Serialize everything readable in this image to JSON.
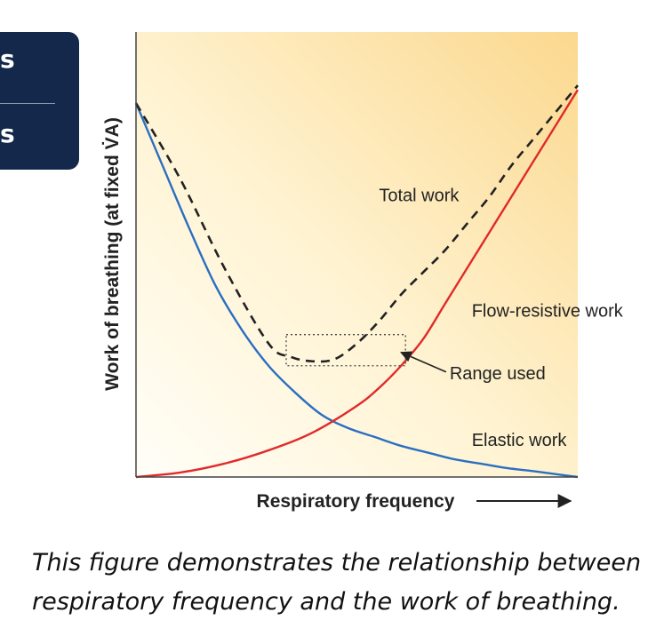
{
  "sidebar": {
    "items": [
      {
        "label": "s"
      },
      {
        "label": "s"
      }
    ]
  },
  "colors": {
    "sidebar_bg": "#13284a",
    "plot_bg_light": "#fffdf4",
    "plot_bg_dark": "#fbd88e",
    "elastic": "#2a6fc1",
    "flow_resistive": "#e02a2a",
    "total": "#222222"
  },
  "caption": "This figure demonstrates the relationship between respiratory frequency and the work of breathing.",
  "chart_data": {
    "type": "line",
    "xlabel": "Respiratory frequency",
    "ylabel": "Work of breathing (at fixed V̇A)",
    "xlim": [
      0,
      1
    ],
    "ylim": [
      0,
      1
    ],
    "grid": false,
    "series": [
      {
        "name": "Elastic work",
        "color": "#2a6fc1",
        "x": [
          0.0,
          0.06,
          0.12,
          0.18,
          0.24,
          0.3,
          0.36,
          0.42,
          0.48,
          0.54,
          0.6,
          0.66,
          0.72,
          0.78,
          0.84,
          0.9,
          0.96,
          1.0
        ],
        "y": [
          0.84,
          0.7,
          0.56,
          0.43,
          0.33,
          0.25,
          0.19,
          0.14,
          0.11,
          0.09,
          0.07,
          0.055,
          0.04,
          0.03,
          0.02,
          0.013,
          0.005,
          0.0
        ]
      },
      {
        "name": "Flow-resistive work",
        "color": "#e02a2a",
        "x": [
          0.0,
          0.1,
          0.2,
          0.3,
          0.4,
          0.5,
          0.55,
          0.6,
          0.65,
          0.7,
          0.75,
          0.8,
          0.85,
          0.9,
          0.95,
          1.0
        ],
        "y": [
          0.0,
          0.01,
          0.03,
          0.06,
          0.1,
          0.16,
          0.2,
          0.25,
          0.31,
          0.39,
          0.47,
          0.55,
          0.63,
          0.71,
          0.79,
          0.87
        ]
      },
      {
        "name": "Total work",
        "color": "#222222",
        "dashed": true,
        "x": [
          0.0,
          0.1,
          0.2,
          0.3,
          0.35,
          0.4,
          0.45,
          0.5,
          0.55,
          0.6,
          0.65,
          0.7,
          0.75,
          0.8,
          0.85,
          0.9,
          0.95,
          1.0
        ],
        "y": [
          0.84,
          0.67,
          0.47,
          0.3,
          0.27,
          0.26,
          0.265,
          0.3,
          0.35,
          0.41,
          0.46,
          0.51,
          0.57,
          0.63,
          0.7,
          0.76,
          0.82,
          0.88
        ]
      }
    ],
    "annotations": [
      {
        "text": "Total work",
        "x": 0.55,
        "y": 0.62,
        "anchor": "start"
      },
      {
        "text": "Flow-resistive work",
        "x": 0.76,
        "y": 0.36,
        "anchor": "start"
      },
      {
        "text": "Range used",
        "x": 0.71,
        "y": 0.22,
        "anchor": "start",
        "arrow_to": [
          0.6,
          0.28
        ]
      },
      {
        "text": "Elastic work",
        "x": 0.76,
        "y": 0.07,
        "anchor": "start"
      }
    ],
    "range_box": {
      "x0": 0.34,
      "x1": 0.61,
      "y0": 0.25,
      "y1": 0.32
    }
  }
}
